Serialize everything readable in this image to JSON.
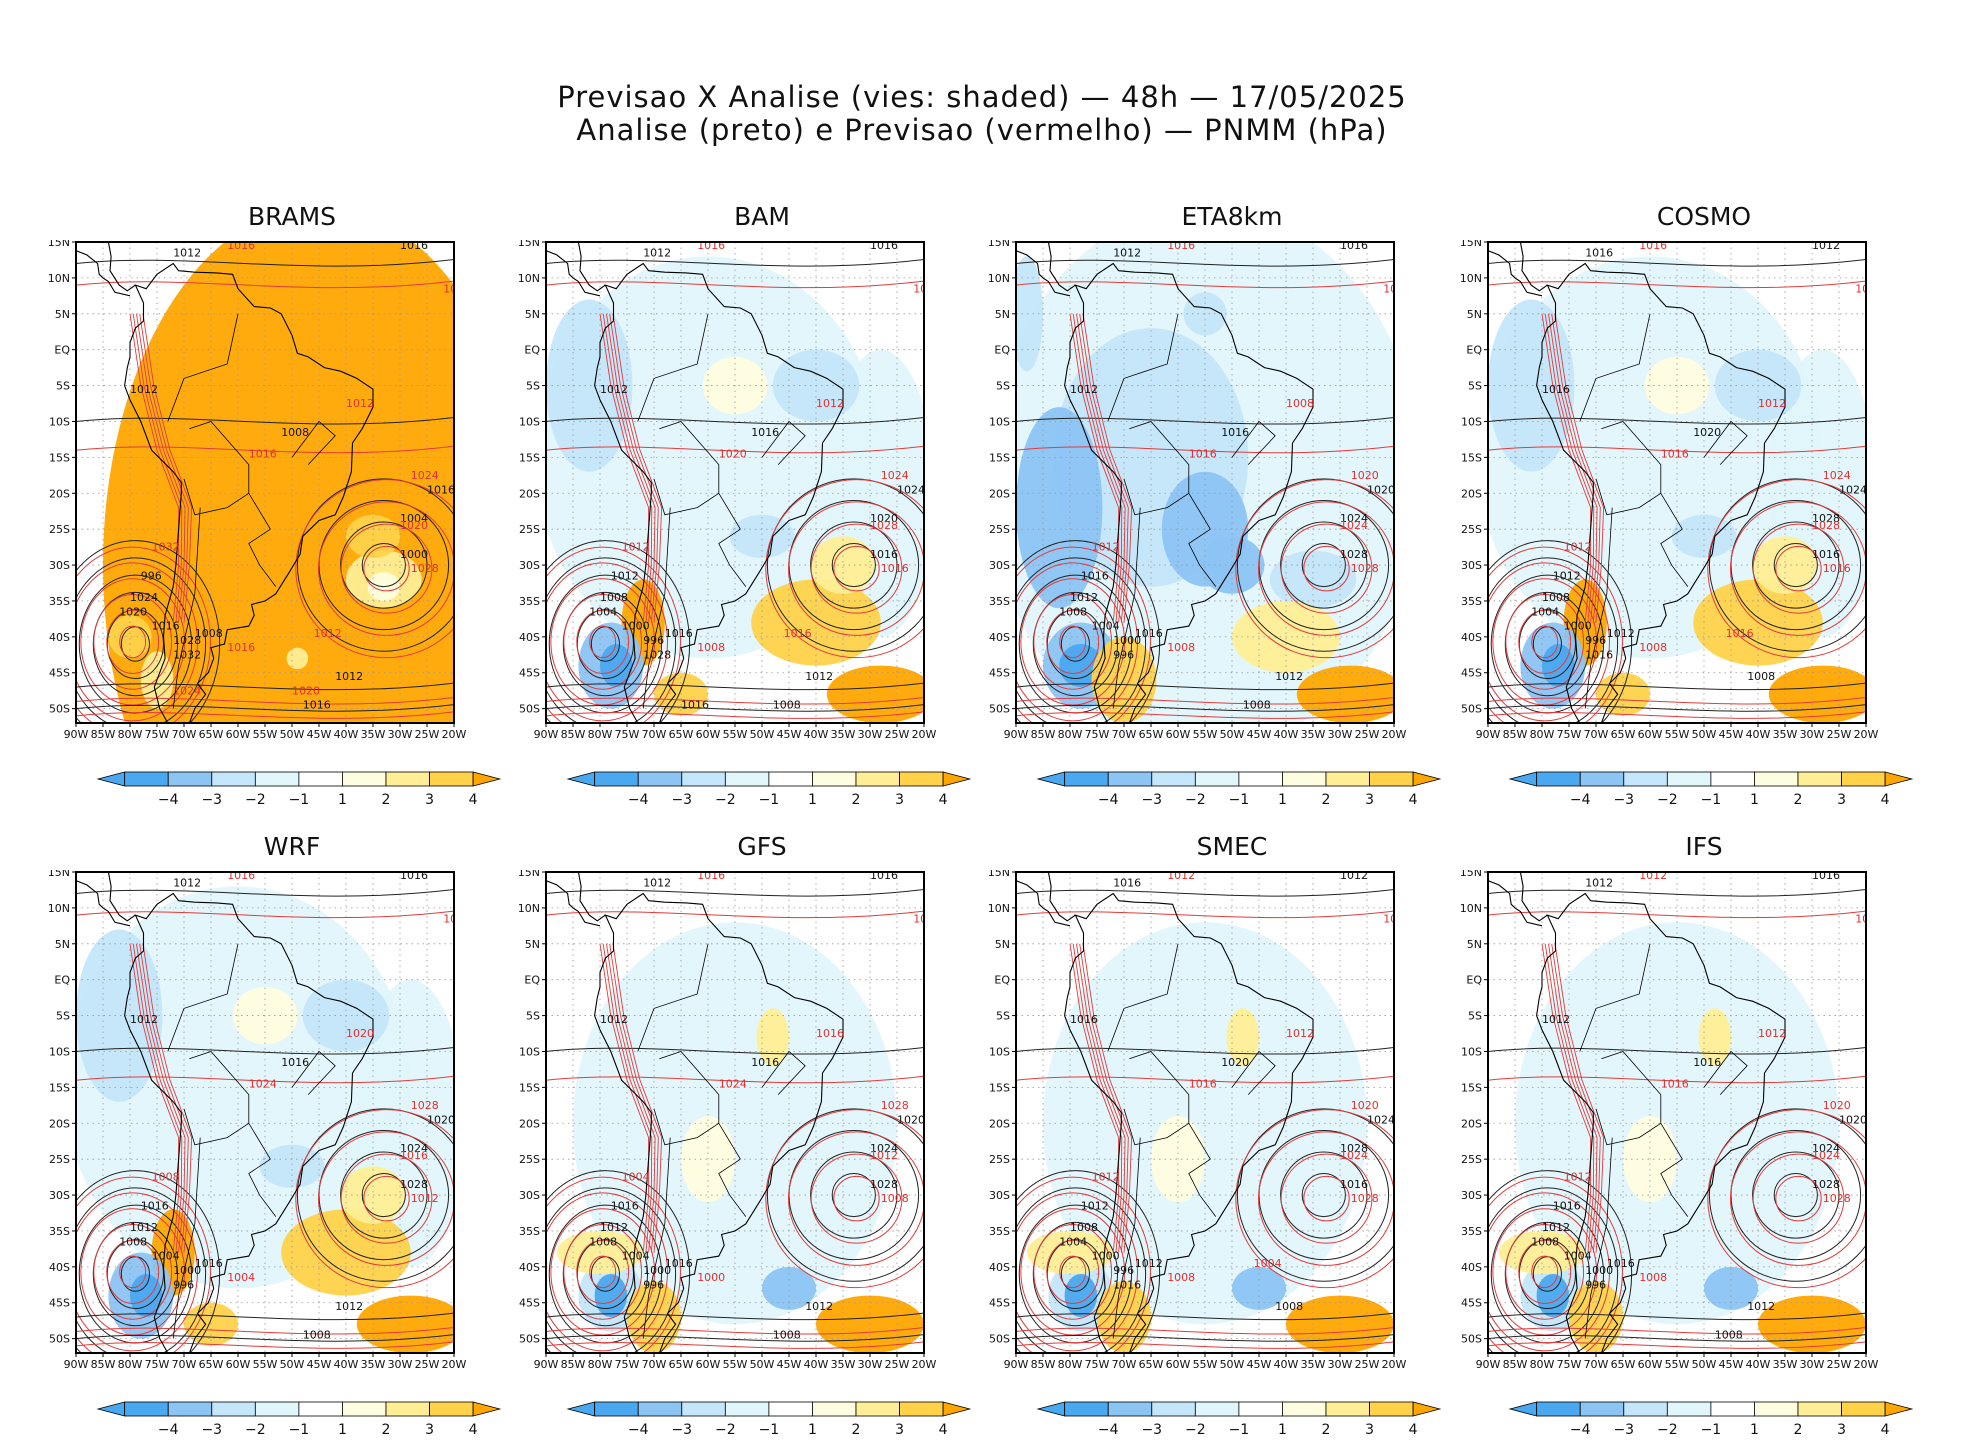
{
  "header": {
    "title_line1": "Previsao X Analise (vies: shaded) — 48h — 17/05/2025",
    "title_line2": "Analise (preto) e Previsao (vermelho) — PNMM (hPa)"
  },
  "colors": {
    "neg4": "#4aa8f0",
    "neg3": "#8cc4f4",
    "neg2": "#c4e6fa",
    "neg1": "#e0f6fb",
    "pos1": "#fffde0",
    "pos2": "#ffee96",
    "pos3": "#ffd24a",
    "pos4": "#ffa600",
    "land_line": "#000000",
    "analysis_line": "#222222",
    "forecast_line": "#e23b3b"
  },
  "axes": {
    "lat_labels": [
      "15N",
      "10N",
      "5N",
      "EQ",
      "5S",
      "10S",
      "15S",
      "20S",
      "25S",
      "30S",
      "35S",
      "40S",
      "45S",
      "50S"
    ],
    "lon_labels": [
      "90W",
      "85W",
      "80W",
      "75W",
      "70W",
      "65W",
      "60W",
      "55W",
      "50W",
      "45W",
      "40W",
      "35W",
      "30W",
      "25W",
      "20W"
    ]
  },
  "colorbar": {
    "labels": [
      "−4",
      "−3",
      "−2",
      "−1",
      "1",
      "2",
      "3",
      "4"
    ]
  },
  "panels": [
    {
      "title": "BRAMS",
      "bias": "warm_all",
      "isobars_black": [
        "1012",
        "1016",
        "1012",
        "1008",
        "1016",
        "1004",
        "1000",
        "996",
        "1024",
        "1020",
        "1016",
        "1028",
        "1032",
        "1008",
        "1012",
        "1016"
      ],
      "isobars_red": [
        "1016",
        "1020",
        "1012",
        "1016",
        "1024",
        "1020",
        "1028",
        "1032",
        "1016",
        "1012",
        "1020",
        "1024"
      ]
    },
    {
      "title": "BAM",
      "bias": "mixed",
      "isobars_black": [
        "1012",
        "1016",
        "1012",
        "1016",
        "1024",
        "1020",
        "1016",
        "1012",
        "1008",
        "1004",
        "1000",
        "996",
        "1028",
        "1016",
        "1012",
        "1008",
        "1016"
      ],
      "isobars_red": [
        "1016",
        "1012",
        "1012",
        "1020",
        "1024",
        "1028",
        "1016",
        "1012",
        "1008",
        "1016"
      ]
    },
    {
      "title": "ETA8km",
      "bias": "cool",
      "isobars_black": [
        "1012",
        "1016",
        "1012",
        "1016",
        "1020",
        "1024",
        "1028",
        "1016",
        "1012",
        "1008",
        "1004",
        "1000",
        "996",
        "1016",
        "1012",
        "1008"
      ],
      "isobars_red": [
        "1016",
        "1012",
        "1008",
        "1016",
        "1020",
        "1024",
        "1028",
        "1012",
        "1008"
      ]
    },
    {
      "title": "COSMO",
      "bias": "mixed",
      "isobars_black": [
        "1016",
        "1012",
        "1016",
        "1020",
        "1024",
        "1028",
        "1016",
        "1012",
        "1008",
        "1004",
        "1000",
        "996",
        "1016",
        "1012",
        "1008"
      ],
      "isobars_red": [
        "1016",
        "1012",
        "1012",
        "1016",
        "1024",
        "1028",
        "1016",
        "1012",
        "1008",
        "1016"
      ]
    },
    {
      "title": "WRF",
      "bias": "mixed",
      "isobars_black": [
        "1012",
        "1016",
        "1012",
        "1016",
        "1020",
        "1024",
        "1028",
        "1016",
        "1012",
        "1008",
        "1004",
        "1000",
        "996",
        "1016",
        "1012",
        "1008"
      ],
      "isobars_red": [
        "1016",
        "1012",
        "1020",
        "1024",
        "1028",
        "1016",
        "1012",
        "1008",
        "1004"
      ]
    },
    {
      "title": "GFS",
      "bias": "light",
      "isobars_black": [
        "1012",
        "1016",
        "1012",
        "1016",
        "1020",
        "1024",
        "1028",
        "1016",
        "1012",
        "1008",
        "1004",
        "1000",
        "996",
        "1016",
        "1012",
        "1008"
      ],
      "isobars_red": [
        "1016",
        "1012",
        "1016",
        "1024",
        "1028",
        "1012",
        "1008",
        "1004",
        "1000"
      ]
    },
    {
      "title": "SMEC",
      "bias": "light",
      "isobars_black": [
        "1016",
        "1012",
        "1016",
        "1020",
        "1024",
        "1028",
        "1016",
        "1012",
        "1008",
        "1004",
        "1000",
        "996",
        "1016",
        "1012",
        "1008"
      ],
      "isobars_red": [
        "1012",
        "1016",
        "1012",
        "1016",
        "1020",
        "1024",
        "1028",
        "1012",
        "1008",
        "1004"
      ]
    },
    {
      "title": "IFS",
      "bias": "light",
      "isobars_black": [
        "1012",
        "1016",
        "1012",
        "1016",
        "1020",
        "1024",
        "1028",
        "1016",
        "1012",
        "1008",
        "1004",
        "1000",
        "996",
        "1016",
        "1012",
        "1008"
      ],
      "isobars_red": [
        "1012",
        "1016",
        "1012",
        "1016",
        "1020",
        "1024",
        "1028",
        "1012",
        "1008"
      ]
    }
  ]
}
